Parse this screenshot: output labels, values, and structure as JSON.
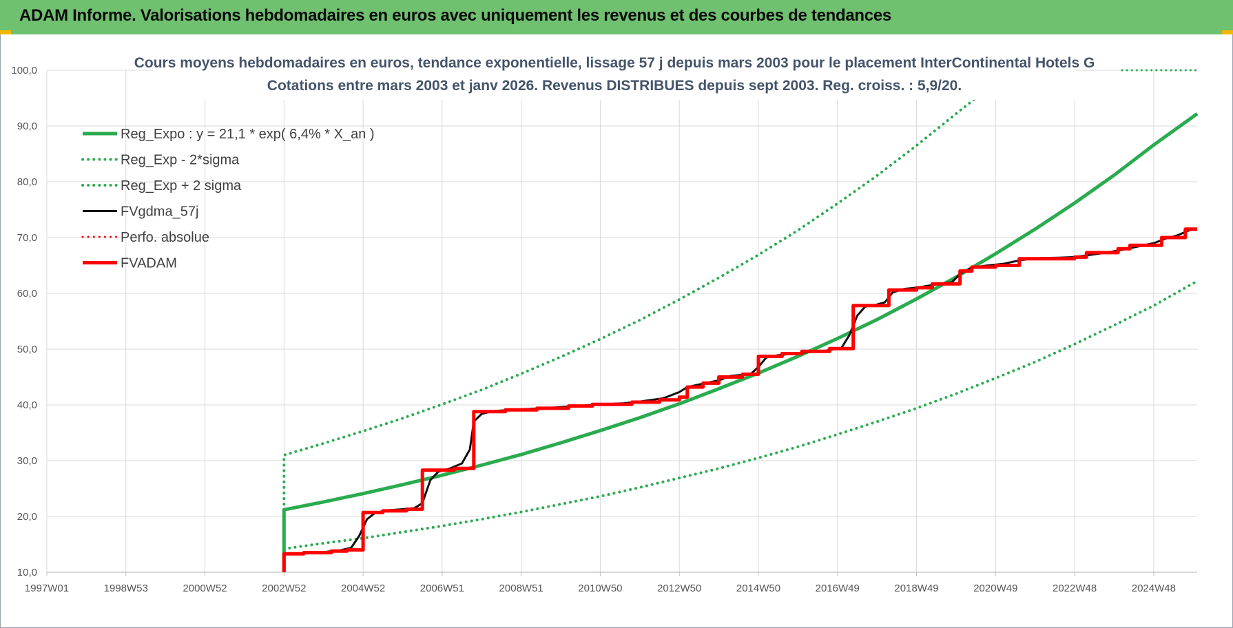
{
  "header": {
    "title": "ADAM Informe. Valorisations hebdomadaires en euros avec uniquement les revenus et des courbes de tendances",
    "background": "#6fc06f"
  },
  "chart_data": {
    "type": "line",
    "title": "Cours moyens hebdomadaires en euros, tendance exponentielle, lissage 57 j depuis mars 2003 pour le placement InterContinental Hotels G",
    "subtitle": "Cotations entre mars 2003 et janv 2026. Revenus DISTRIBUES depuis sept 2003. Reg. croiss. : 5,9/20.",
    "xlabel": "",
    "ylabel": "",
    "xlim": [
      1997.0,
      2026.1
    ],
    "ylim": [
      10,
      100
    ],
    "y_ticks": [
      "10,0",
      "20,0",
      "30,0",
      "40,0",
      "50,0",
      "60,0",
      "70,0",
      "80,0",
      "90,0",
      "100,0"
    ],
    "x_ticks": [
      {
        "label": "1997W01",
        "x": 1997.0
      },
      {
        "label": "1998W53",
        "x": 1999.0
      },
      {
        "label": "2000W52",
        "x": 2001.0
      },
      {
        "label": "2002W52",
        "x": 2003.0
      },
      {
        "label": "2004W52",
        "x": 2005.0
      },
      {
        "label": "2006W51",
        "x": 2007.0
      },
      {
        "label": "2008W51",
        "x": 2009.0
      },
      {
        "label": "2010W50",
        "x": 2011.0
      },
      {
        "label": "2012W50",
        "x": 2013.0
      },
      {
        "label": "2014W50",
        "x": 2015.0
      },
      {
        "label": "2016W49",
        "x": 2017.0
      },
      {
        "label": "2018W49",
        "x": 2019.0
      },
      {
        "label": "2020W49",
        "x": 2021.0
      },
      {
        "label": "2022W48",
        "x": 2023.0
      },
      {
        "label": "2024W48",
        "x": 2025.0
      }
    ],
    "grid": true,
    "legend_position": "top-left",
    "series": [
      {
        "name": "Reg_Expo : y = 21,1 * exp( 6,4% *  X_an )",
        "color": "#2bab4f",
        "style": "solid",
        "width": 5,
        "points": [
          [
            2003.0,
            10.0
          ],
          [
            2003.0,
            21.2
          ],
          [
            2004,
            22.6
          ],
          [
            2005,
            24.1
          ],
          [
            2006,
            25.7
          ],
          [
            2007,
            27.4
          ],
          [
            2008,
            29.2
          ],
          [
            2009,
            31.1
          ],
          [
            2010,
            33.2
          ],
          [
            2011,
            35.4
          ],
          [
            2012,
            37.7
          ],
          [
            2013,
            40.2
          ],
          [
            2014,
            42.9
          ],
          [
            2015,
            45.7
          ],
          [
            2016,
            48.7
          ],
          [
            2017,
            51.9
          ],
          [
            2018,
            55.3
          ],
          [
            2019,
            59.0
          ],
          [
            2020,
            62.9
          ],
          [
            2021,
            67.1
          ],
          [
            2022,
            71.5
          ],
          [
            2023,
            76.2
          ],
          [
            2024,
            81.2
          ],
          [
            2025,
            86.6
          ],
          [
            2026.1,
            92.2
          ]
        ]
      },
      {
        "name": "Reg_Exp - 2*sigma",
        "color": "#2bab4f",
        "style": "dotted",
        "width": 4,
        "points": [
          [
            2003.0,
            14.2
          ],
          [
            2004,
            15.2
          ],
          [
            2005,
            16.1
          ],
          [
            2006,
            17.2
          ],
          [
            2007,
            18.3
          ],
          [
            2008,
            19.5
          ],
          [
            2009,
            20.8
          ],
          [
            2010,
            22.2
          ],
          [
            2011,
            23.6
          ],
          [
            2012,
            25.2
          ],
          [
            2013,
            26.9
          ],
          [
            2014,
            28.6
          ],
          [
            2015,
            30.5
          ],
          [
            2016,
            32.5
          ],
          [
            2017,
            34.7
          ],
          [
            2018,
            37.0
          ],
          [
            2019,
            39.4
          ],
          [
            2020,
            42.0
          ],
          [
            2021,
            44.8
          ],
          [
            2022,
            47.7
          ],
          [
            2023,
            50.9
          ],
          [
            2024,
            54.3
          ],
          [
            2025,
            57.8
          ],
          [
            2026.1,
            62.2
          ]
        ]
      },
      {
        "name": "Reg_Exp + 2 sigma",
        "color": "#2bab4f",
        "style": "dotted",
        "width": 4,
        "points": [
          [
            2003.0,
            14.2
          ],
          [
            2003.0,
            31.0
          ],
          [
            2004,
            33.1
          ],
          [
            2005,
            35.3
          ],
          [
            2006,
            37.6
          ],
          [
            2007,
            40.1
          ],
          [
            2008,
            42.7
          ],
          [
            2009,
            45.6
          ],
          [
            2010,
            48.6
          ],
          [
            2011,
            51.8
          ],
          [
            2012,
            55.2
          ],
          [
            2013,
            58.9
          ],
          [
            2014,
            62.8
          ],
          [
            2015,
            66.9
          ],
          [
            2016,
            71.3
          ],
          [
            2017,
            76.1
          ],
          [
            2018,
            81.1
          ],
          [
            2019,
            86.5
          ],
          [
            2020,
            92.2
          ],
          [
            2020.5,
            95.0
          ]
        ]
      },
      {
        "name": "FVgdma_57j",
        "color": "#111111",
        "style": "solid",
        "width": 3,
        "points": [
          [
            2003.0,
            13.3
          ],
          [
            2003.6,
            13.4
          ],
          [
            2004.0,
            13.6
          ],
          [
            2004.4,
            13.9
          ],
          [
            2004.7,
            14.4
          ],
          [
            2004.9,
            16.5
          ],
          [
            2005.1,
            19.5
          ],
          [
            2005.3,
            20.6
          ],
          [
            2005.6,
            21.1
          ],
          [
            2006.0,
            21.3
          ],
          [
            2006.3,
            21.5
          ],
          [
            2006.5,
            22.4
          ],
          [
            2006.7,
            26.5
          ],
          [
            2006.9,
            28.0
          ],
          [
            2007.2,
            28.6
          ],
          [
            2007.5,
            29.5
          ],
          [
            2007.7,
            32.0
          ],
          [
            2007.8,
            37.0
          ],
          [
            2008.0,
            38.4
          ],
          [
            2008.3,
            38.9
          ],
          [
            2009.0,
            39.2
          ],
          [
            2010.0,
            39.6
          ],
          [
            2011.0,
            40.1
          ],
          [
            2011.6,
            40.3
          ],
          [
            2012.0,
            40.6
          ],
          [
            2012.6,
            41.2
          ],
          [
            2013.0,
            42.3
          ],
          [
            2013.2,
            43.2
          ],
          [
            2013.6,
            43.8
          ],
          [
            2014.0,
            44.4
          ],
          [
            2014.3,
            45.2
          ],
          [
            2014.8,
            45.5
          ],
          [
            2015.0,
            46.8
          ],
          [
            2015.2,
            48.5
          ],
          [
            2015.5,
            48.9
          ],
          [
            2016.0,
            49.3
          ],
          [
            2016.7,
            49.7
          ],
          [
            2017.1,
            50.2
          ],
          [
            2017.3,
            52.5
          ],
          [
            2017.5,
            56.0
          ],
          [
            2017.7,
            57.6
          ],
          [
            2018.0,
            58.0
          ],
          [
            2018.2,
            58.4
          ],
          [
            2018.4,
            60.2
          ],
          [
            2018.7,
            60.8
          ],
          [
            2019.0,
            61.0
          ],
          [
            2019.5,
            61.6
          ],
          [
            2019.9,
            62.0
          ],
          [
            2020.1,
            63.5
          ],
          [
            2020.4,
            64.6
          ],
          [
            2020.8,
            65.0
          ],
          [
            2021.2,
            65.3
          ],
          [
            2021.6,
            65.9
          ],
          [
            2022.0,
            66.3
          ],
          [
            2022.6,
            66.4
          ],
          [
            2023.0,
            66.5
          ],
          [
            2023.3,
            66.8
          ],
          [
            2023.8,
            67.3
          ],
          [
            2024.2,
            67.8
          ],
          [
            2024.6,
            68.4
          ],
          [
            2025.0,
            69.0
          ],
          [
            2025.3,
            69.8
          ],
          [
            2025.6,
            70.4
          ],
          [
            2025.9,
            71.3
          ],
          [
            2026.1,
            71.6
          ]
        ]
      },
      {
        "name": "Perfo. absolue",
        "color": "#ff0000",
        "style": "dotted",
        "width": 3,
        "points": []
      },
      {
        "name": "FVADAM",
        "color": "#ff0000",
        "style": "solid",
        "width": 5,
        "points": [
          [
            2003.0,
            10.0
          ],
          [
            2003.0,
            13.3
          ],
          [
            2003.5,
            13.3
          ],
          [
            2003.5,
            13.5
          ],
          [
            2004.2,
            13.5
          ],
          [
            2004.2,
            13.8
          ],
          [
            2004.6,
            13.8
          ],
          [
            2004.6,
            14.0
          ],
          [
            2005.0,
            14.0
          ],
          [
            2005.0,
            20.7
          ],
          [
            2005.5,
            20.7
          ],
          [
            2005.5,
            21.0
          ],
          [
            2006.1,
            21.0
          ],
          [
            2006.1,
            21.3
          ],
          [
            2006.5,
            21.3
          ],
          [
            2006.5,
            28.3
          ],
          [
            2007.3,
            28.3
          ],
          [
            2007.3,
            28.6
          ],
          [
            2007.8,
            28.6
          ],
          [
            2007.8,
            38.8
          ],
          [
            2008.6,
            38.8
          ],
          [
            2008.6,
            39.1
          ],
          [
            2009.4,
            39.1
          ],
          [
            2009.4,
            39.4
          ],
          [
            2010.2,
            39.4
          ],
          [
            2010.2,
            39.8
          ],
          [
            2010.8,
            39.8
          ],
          [
            2010.8,
            40.1
          ],
          [
            2011.8,
            40.1
          ],
          [
            2011.8,
            40.5
          ],
          [
            2012.5,
            40.5
          ],
          [
            2012.5,
            40.9
          ],
          [
            2013.0,
            40.9
          ],
          [
            2013.0,
            41.4
          ],
          [
            2013.2,
            41.4
          ],
          [
            2013.2,
            43.2
          ],
          [
            2013.6,
            43.2
          ],
          [
            2013.6,
            43.9
          ],
          [
            2014.0,
            43.9
          ],
          [
            2014.0,
            45.0
          ],
          [
            2014.6,
            45.0
          ],
          [
            2014.6,
            45.5
          ],
          [
            2015.0,
            45.5
          ],
          [
            2015.0,
            48.7
          ],
          [
            2015.6,
            48.7
          ],
          [
            2015.6,
            49.2
          ],
          [
            2016.1,
            49.2
          ],
          [
            2016.1,
            49.6
          ],
          [
            2016.8,
            49.6
          ],
          [
            2016.8,
            50.1
          ],
          [
            2017.4,
            50.1
          ],
          [
            2017.4,
            57.8
          ],
          [
            2018.3,
            57.8
          ],
          [
            2018.3,
            60.6
          ],
          [
            2019.0,
            60.6
          ],
          [
            2019.0,
            61.0
          ],
          [
            2019.4,
            61.0
          ],
          [
            2019.4,
            61.7
          ],
          [
            2020.1,
            61.7
          ],
          [
            2020.1,
            64.0
          ],
          [
            2020.4,
            64.0
          ],
          [
            2020.4,
            64.7
          ],
          [
            2021.0,
            64.7
          ],
          [
            2021.0,
            65.0
          ],
          [
            2021.6,
            65.0
          ],
          [
            2021.6,
            66.2
          ],
          [
            2023.0,
            66.2
          ],
          [
            2023.0,
            66.5
          ],
          [
            2023.3,
            66.5
          ],
          [
            2023.3,
            67.3
          ],
          [
            2024.1,
            67.3
          ],
          [
            2024.1,
            68.0
          ],
          [
            2024.4,
            68.0
          ],
          [
            2024.4,
            68.6
          ],
          [
            2025.2,
            68.6
          ],
          [
            2025.2,
            70.0
          ],
          [
            2025.8,
            70.0
          ],
          [
            2025.8,
            71.5
          ],
          [
            2026.1,
            71.5
          ]
        ]
      }
    ]
  }
}
